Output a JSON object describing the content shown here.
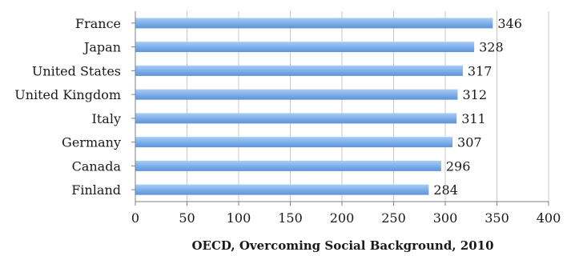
{
  "chart_data": {
    "type": "bar",
    "orientation": "horizontal",
    "categories": [
      "France",
      "Japan",
      "United States",
      "United Kingdom",
      "Italy",
      "Germany",
      "Canada",
      "Finland"
    ],
    "values": [
      346,
      328,
      317,
      312,
      311,
      307,
      296,
      284
    ],
    "value_labels": [
      "346",
      "328",
      "317",
      "312",
      "311",
      "307",
      "296",
      "284"
    ],
    "xlabel": "OECD, Overcoming Social Background, 2010",
    "xlim": [
      0,
      400
    ],
    "xticks": [
      0,
      50,
      100,
      150,
      200,
      250,
      300,
      350,
      400
    ],
    "xtick_labels": [
      "0",
      "50",
      "100",
      "150",
      "200",
      "250",
      "300",
      "350",
      "400"
    ],
    "grid": true,
    "legend": "none",
    "bar_color": "#7fb0ea"
  }
}
